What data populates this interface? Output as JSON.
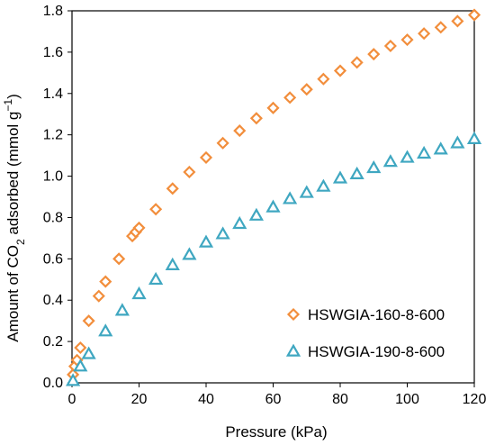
{
  "chart_data": {
    "type": "scatter",
    "xlabel": "Pressure (kPa)",
    "ylabel": "Amount of CO2 adsorbed (mmol g-1)",
    "xlim": [
      0,
      120
    ],
    "ylim": [
      0,
      1.8
    ],
    "x_ticks": [
      "0",
      "20",
      "40",
      "60",
      "80",
      "100",
      "120"
    ],
    "y_ticks": [
      "0.0",
      "0.2",
      "0.4",
      "0.6",
      "0.8",
      "1.0",
      "1.2",
      "1.4",
      "1.6",
      "1.8"
    ],
    "grid": false,
    "legend_position": "bottom-right",
    "series": [
      {
        "name": "HSWGIA-160-8-600",
        "marker": "diamond",
        "color": "#F28E3C",
        "x": [
          0.3,
          0.8,
          1.5,
          2.5,
          5,
          8,
          10,
          14,
          18,
          19,
          20,
          25,
          30,
          35,
          40,
          45,
          50,
          55,
          60,
          65,
          70,
          75,
          80,
          85,
          90,
          95,
          100,
          105,
          110,
          115,
          120
        ],
        "y": [
          0.04,
          0.08,
          0.11,
          0.17,
          0.3,
          0.42,
          0.49,
          0.6,
          0.71,
          0.73,
          0.75,
          0.84,
          0.94,
          1.02,
          1.09,
          1.16,
          1.22,
          1.28,
          1.33,
          1.38,
          1.42,
          1.47,
          1.51,
          1.55,
          1.59,
          1.63,
          1.66,
          1.69,
          1.72,
          1.75,
          1.78
        ]
      },
      {
        "name": "HSWGIA-190-8-600",
        "marker": "triangle",
        "color": "#3FA7C1",
        "x": [
          0.3,
          2.5,
          5,
          10,
          15,
          20,
          25,
          30,
          35,
          40,
          45,
          50,
          55,
          60,
          65,
          70,
          75,
          80,
          85,
          90,
          95,
          100,
          105,
          110,
          115,
          120
        ],
        "y": [
          0.01,
          0.08,
          0.14,
          0.25,
          0.35,
          0.43,
          0.5,
          0.57,
          0.62,
          0.68,
          0.72,
          0.77,
          0.81,
          0.85,
          0.89,
          0.92,
          0.95,
          0.99,
          1.01,
          1.04,
          1.07,
          1.09,
          1.11,
          1.13,
          1.16,
          1.18
        ]
      }
    ]
  }
}
